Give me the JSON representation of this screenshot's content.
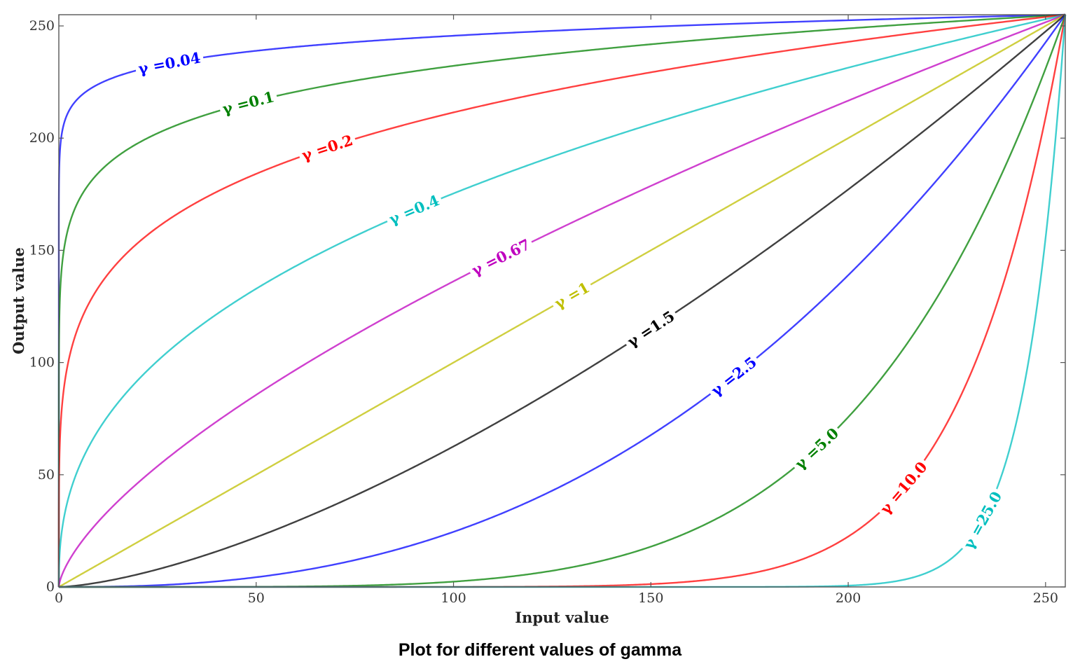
{
  "caption": "Plot for different values of gamma",
  "chart_data": {
    "type": "line",
    "title": "Plot for different values of gamma",
    "xlabel": "Input value",
    "ylabel": "Output value",
    "xlim": [
      0,
      255
    ],
    "ylim": [
      0,
      255
    ],
    "xticks": [
      0,
      50,
      100,
      150,
      200,
      250
    ],
    "yticks": [
      0,
      50,
      100,
      150,
      200,
      250
    ],
    "grid": false,
    "legend": "none (inline curve labels)",
    "formula": "y = 255 * (x / 255) ^ gamma",
    "label_prefix": "γ =",
    "series": [
      {
        "name": "γ =0.04",
        "gamma": 0.04,
        "color": "#0000ff",
        "label_x": 28
      },
      {
        "name": "γ =0.1",
        "gamma": 0.1,
        "color": "#008000",
        "label_x": 48
      },
      {
        "name": "γ =0.2",
        "gamma": 0.2,
        "color": "#ff0000",
        "label_x": 68
      },
      {
        "name": "γ =0.4",
        "gamma": 0.4,
        "color": "#00bfbf",
        "label_x": 90
      },
      {
        "name": "γ =0.67",
        "gamma": 0.67,
        "color": "#bf00bf",
        "label_x": 112
      },
      {
        "name": "γ =1",
        "gamma": 1,
        "color": "#bfbf00",
        "label_x": 130
      },
      {
        "name": "γ =1.5",
        "gamma": 1.5,
        "color": "#000000",
        "label_x": 150
      },
      {
        "name": "γ =2.5",
        "gamma": 2.5,
        "color": "#0000ff",
        "label_x": 171
      },
      {
        "name": "γ =5.0",
        "gamma": 5.0,
        "color": "#008000",
        "label_x": 192
      },
      {
        "name": "γ =10.0",
        "gamma": 10.0,
        "color": "#ff0000",
        "label_x": 214
      },
      {
        "name": "γ =25.0",
        "gamma": 25.0,
        "color": "#00bfbf",
        "label_x": 234
      }
    ]
  }
}
